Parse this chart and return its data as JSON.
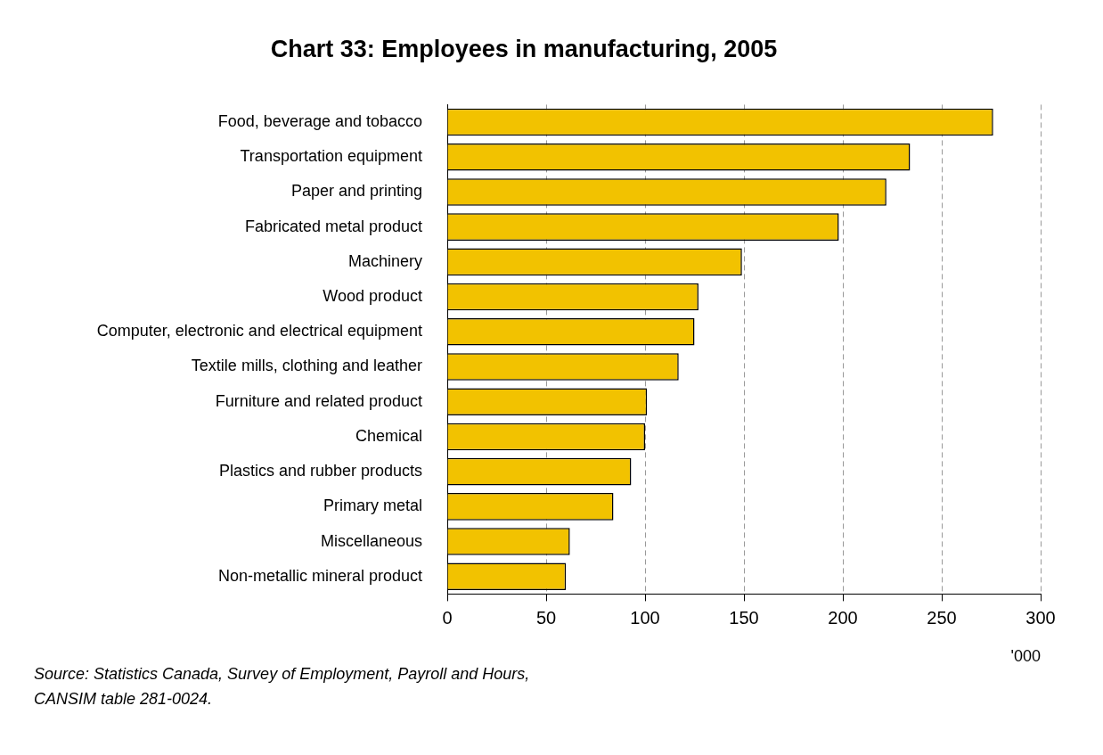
{
  "chart_data": {
    "type": "bar",
    "orientation": "horizontal",
    "title": "Chart 33: Employees in manufacturing, 2005",
    "xlabel": "'000",
    "categories": [
      "Food, beverage and tobacco",
      "Transportation equipment",
      "Paper and printing",
      "Fabricated metal product",
      "Machinery",
      "Wood product",
      "Computer, electronic and electrical equipment",
      "Textile mills, clothing and leather",
      "Furniture and related product",
      "Chemical",
      "Plastics and rubber products",
      "Primary metal",
      "Miscellaneous",
      "Non-metallic mineral product"
    ],
    "values": [
      276,
      234,
      222,
      198,
      149,
      127,
      125,
      117,
      101,
      100,
      93,
      84,
      62,
      60
    ],
    "color": "#f2c200",
    "xlim": [
      0,
      300
    ],
    "xticks": [
      0,
      50,
      100,
      150,
      200,
      250,
      300
    ],
    "grid": "x",
    "legend": false,
    "annotations": [
      "Source: Statistics Canada, Survey of Employment, Payroll and Hours,",
      "CANSIM table 281-0024."
    ]
  }
}
